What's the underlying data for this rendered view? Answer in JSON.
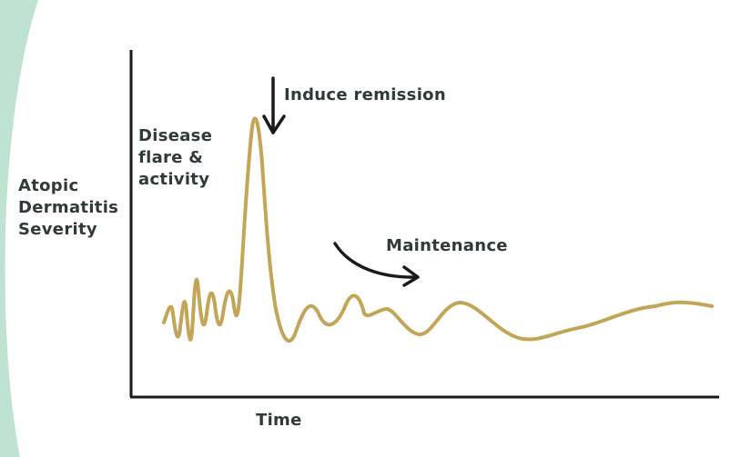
{
  "axes": {
    "y_label": [
      "Atopic",
      "Dermatitis",
      "Severity"
    ],
    "x_label": "Time"
  },
  "annotations": {
    "flare": [
      "Disease",
      "flare &",
      "activity"
    ],
    "remission": "Induce remission",
    "maintenance": "Maintenance"
  }
}
